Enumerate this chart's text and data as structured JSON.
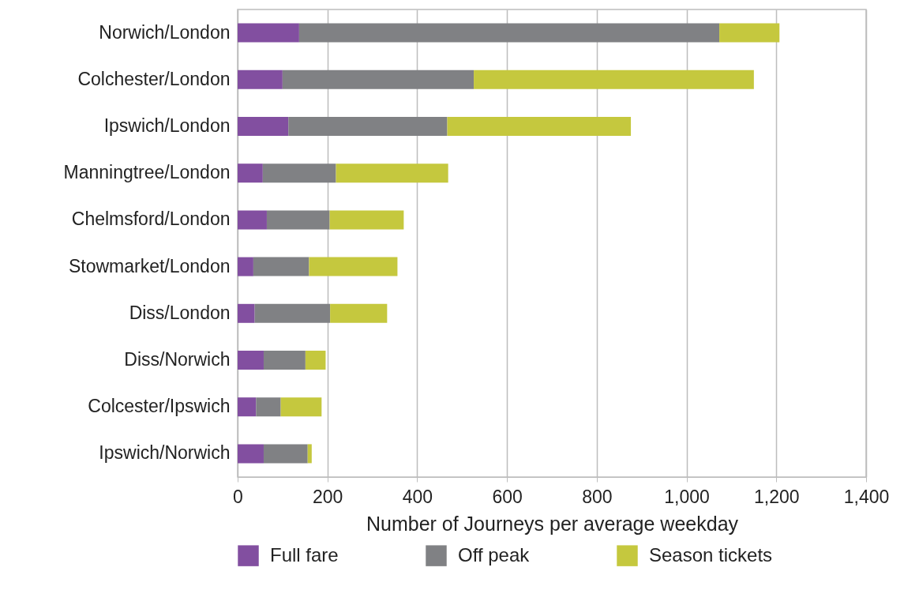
{
  "chart_data": {
    "type": "bar",
    "orientation": "horizontal",
    "stacked": true,
    "categories": [
      "Norwich/London",
      "Colchester/London",
      "Ipswich/London",
      "Manningtree/London",
      "Chelmsford/London",
      "Stowmarket/London",
      "Diss/London",
      "Diss/Norwich",
      "Colcester/Ipswich",
      "Ipswich/Norwich"
    ],
    "series": [
      {
        "name": "Full fare",
        "color": "#824fa0",
        "values": [
          137,
          100,
          113,
          56,
          65,
          35,
          38,
          58,
          41,
          58
        ]
      },
      {
        "name": "Off peak",
        "color": "#808184",
        "values": [
          936,
          426,
          354,
          163,
          140,
          124,
          168,
          93,
          55,
          98
        ]
      },
      {
        "name": "Season tickets",
        "color": "#c5c83e",
        "values": [
          134,
          624,
          409,
          250,
          165,
          197,
          127,
          45,
          91,
          9
        ]
      }
    ],
    "xlabel": "Number of Journeys per average weekday",
    "xlim": [
      0,
      1400
    ],
    "xticks": [
      0,
      200,
      400,
      600,
      800,
      {
        "value": 1000,
        "label": "1,000"
      },
      {
        "value": 1200,
        "label": "1,200"
      },
      {
        "value": 1400,
        "label": "1,400"
      }
    ],
    "grid": "x",
    "legend": "bottom"
  }
}
